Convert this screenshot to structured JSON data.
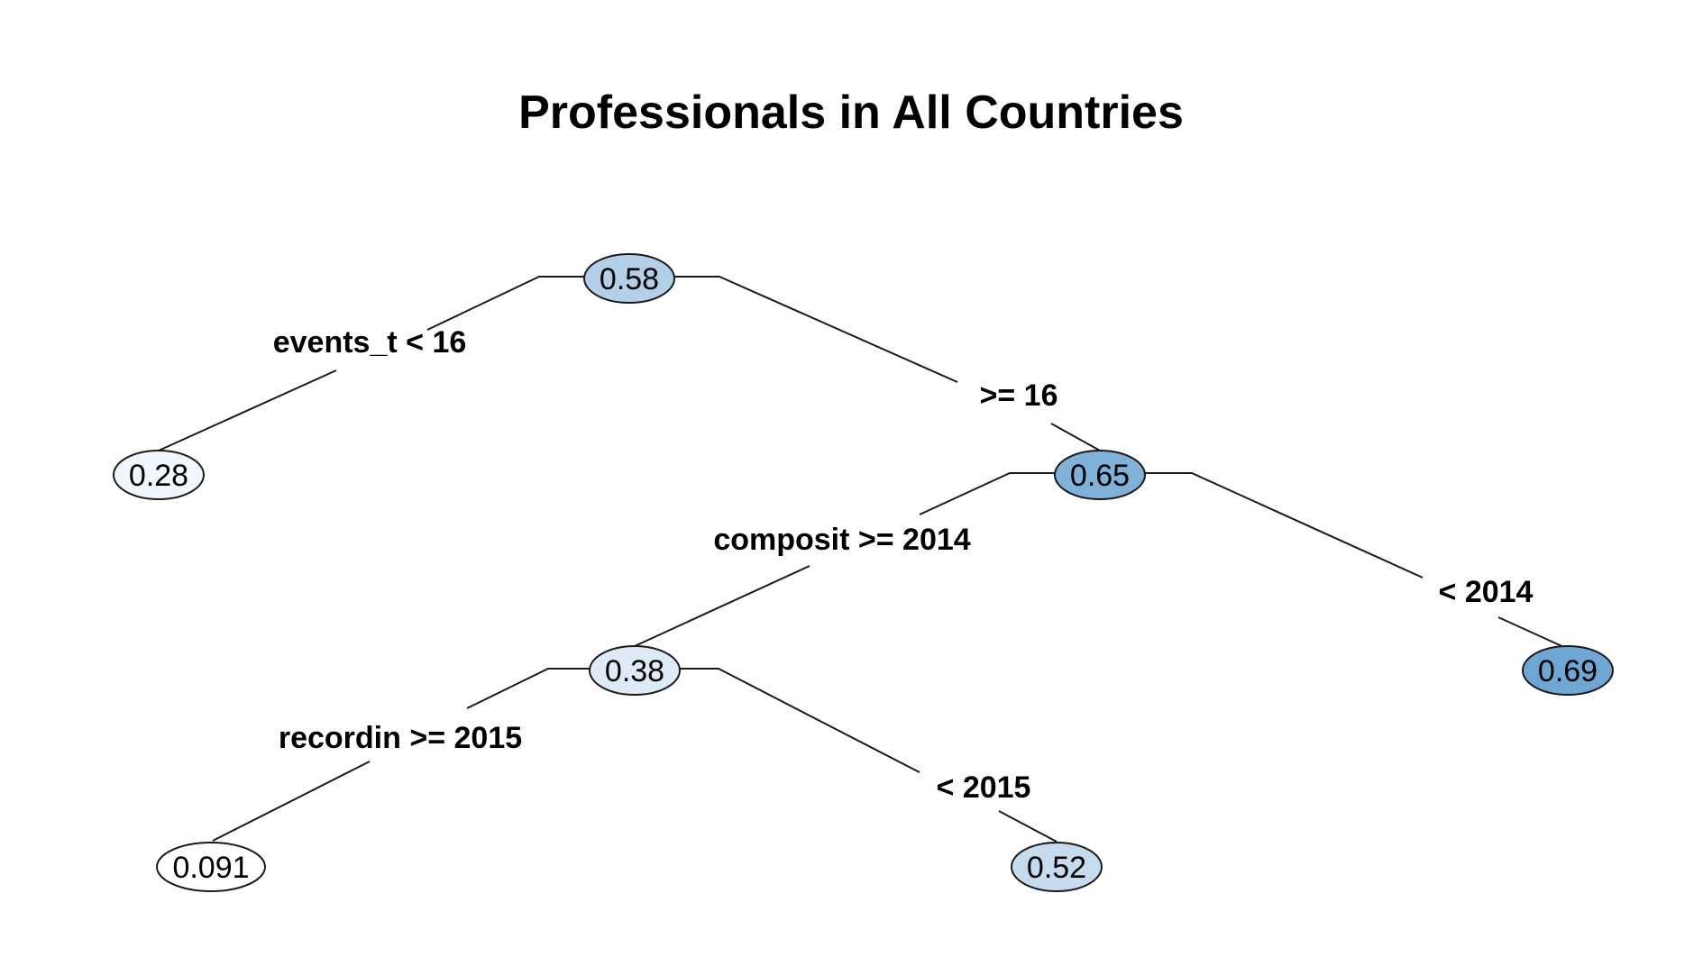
{
  "title": "Professionals in All Countries",
  "colors": {
    "node_0.091": "#ffffff",
    "node_0.28": "#f0f6fb",
    "node_0.38": "#deebf7",
    "node_0.52": "#c7dbef",
    "node_0.58": "#b4d0e9",
    "node_0.65": "#7fb1d9",
    "node_0.69": "#6fa6d4"
  },
  "tree": {
    "root": {
      "value": "0.58",
      "left_label": "events_t < 16",
      "right_label": ">= 16",
      "left": {
        "value": "0.28"
      },
      "right": {
        "value": "0.65",
        "left_label": "composit >= 2014",
        "right_label": "< 2014",
        "left": {
          "value": "0.38",
          "left_label": "recordin >= 2015",
          "right_label": "< 2015",
          "left": {
            "value": "0.091"
          },
          "right": {
            "value": "0.52"
          }
        },
        "right": {
          "value": "0.69"
        }
      }
    }
  }
}
